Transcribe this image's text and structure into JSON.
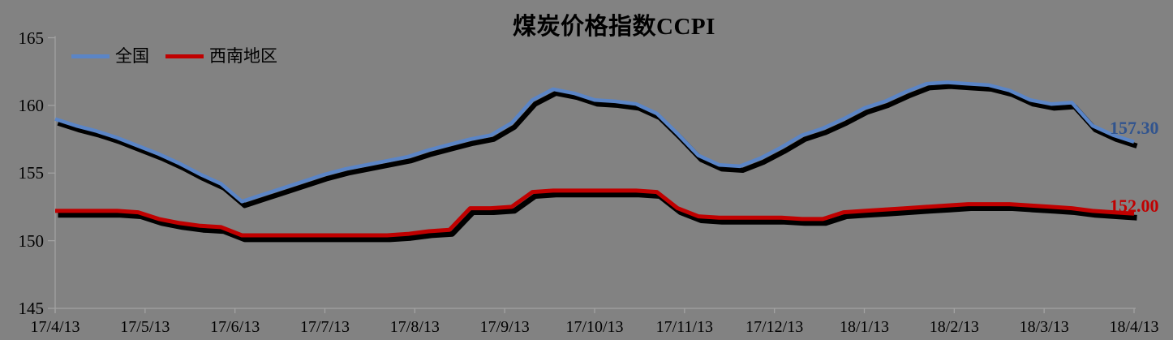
{
  "style": {
    "background": "#828282",
    "axis_color": "#A2A2A2",
    "title_color": "#000000",
    "shadow_color": "#000000"
  },
  "chart_data": {
    "type": "line",
    "title": "煤炭价格指数CCPI",
    "xlabel": "",
    "ylabel": "",
    "ylim": [
      145,
      165
    ],
    "y_ticks": [
      145,
      150,
      155,
      160,
      165
    ],
    "grid": false,
    "legend_position": "top-left",
    "x_tick_labels": [
      "17/4/13",
      "17/5/13",
      "17/6/13",
      "17/7/13",
      "17/8/13",
      "17/9/13",
      "17/10/13",
      "17/11/13",
      "17/12/13",
      "18/1/13",
      "18/2/13",
      "18/3/13",
      "18/4/13"
    ],
    "x_frequency": "weekly",
    "series": [
      {
        "name": "全国",
        "color": "#5B85C6",
        "label_color": "#31548E",
        "end_label": "157.30",
        "end_value": 157.3,
        "values": [
          159.0,
          158.5,
          158.1,
          157.6,
          157.0,
          156.4,
          155.7,
          154.9,
          154.2,
          152.9,
          153.4,
          153.9,
          154.4,
          154.9,
          155.3,
          155.6,
          155.9,
          156.2,
          156.7,
          157.1,
          157.5,
          157.8,
          158.7,
          160.4,
          161.2,
          160.9,
          160.4,
          160.3,
          160.1,
          159.4,
          157.9,
          156.3,
          155.6,
          155.5,
          156.1,
          156.9,
          157.8,
          158.3,
          159.0,
          159.8,
          160.3,
          161.0,
          161.6,
          161.7,
          161.6,
          161.5,
          161.1,
          160.4,
          160.1,
          160.2,
          158.5,
          157.8,
          157.3
        ]
      },
      {
        "name": "西南地区",
        "color": "#C00000",
        "label_color": "#C00000",
        "end_label": "152.00",
        "end_value": 152.0,
        "values": [
          152.2,
          152.2,
          152.2,
          152.2,
          152.1,
          151.6,
          151.3,
          151.1,
          151.0,
          150.4,
          150.4,
          150.4,
          150.4,
          150.4,
          150.4,
          150.4,
          150.4,
          150.5,
          150.7,
          150.8,
          152.4,
          152.4,
          152.5,
          153.6,
          153.7,
          153.7,
          153.7,
          153.7,
          153.7,
          153.6,
          152.4,
          151.8,
          151.7,
          151.7,
          151.7,
          151.7,
          151.6,
          151.6,
          152.1,
          152.2,
          152.3,
          152.4,
          152.5,
          152.6,
          152.7,
          152.7,
          152.7,
          152.6,
          152.5,
          152.4,
          152.2,
          152.1,
          152.0
        ]
      }
    ]
  }
}
